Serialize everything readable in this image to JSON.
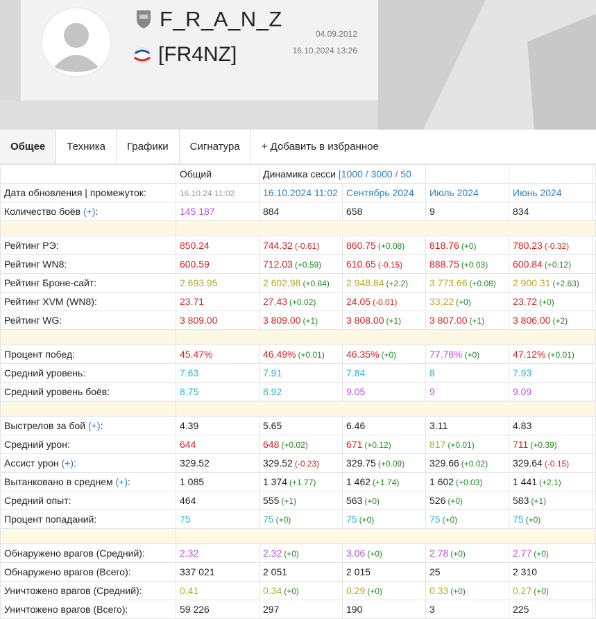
{
  "header": {
    "name": "F_R_A_N_Z",
    "clan": "[FR4NZ]",
    "registered": "04.09.2012",
    "last_battle": "16.10.2024 13:26"
  },
  "tabs": [
    "Общее",
    "Техника",
    "Графики",
    "Сигнатура",
    "+ Добавить в избранное"
  ],
  "table": {
    "head": {
      "total": "Общий",
      "dynamics": "Динамика сесси",
      "dynamics_link": "[1000 / 3000 / 50"
    },
    "colors": {
      "k": "#222222",
      "r": "#e01b1b",
      "g": "#b5a91f",
      "p": "#c04ee0",
      "c": "#2cb5d6",
      "b": "#2a7fc4",
      "s": "#999999",
      "up": "#1f8a1f",
      "down": "#d61f1f"
    },
    "rows": [
      {
        "label": "Дата обновления | промежуток:",
        "cells": [
          [
            "16.10.24 11:02",
            "s"
          ],
          [
            "16.10.2024 11:02",
            "b"
          ],
          [
            "Сентябрь 2024",
            "b"
          ],
          [
            "Июль 2024",
            "b"
          ],
          [
            "Июнь 2024",
            "b"
          ]
        ]
      },
      {
        "label": "Количество боёв",
        "link": "(+)",
        "tail": ":",
        "cells": [
          [
            "145 187",
            "p"
          ],
          [
            "884",
            "k"
          ],
          [
            "658",
            "k"
          ],
          [
            "9",
            "k"
          ],
          [
            "834",
            "k"
          ]
        ]
      },
      {
        "sep": true
      },
      {
        "label": "Рейтинг РЭ:",
        "cells": [
          [
            "850.24",
            "r"
          ],
          [
            "744.32",
            "r",
            "(-0.61)"
          ],
          [
            "860.75",
            "r",
            "(+0.08)"
          ],
          [
            "818.76",
            "r",
            "(+0)"
          ],
          [
            "780.23",
            "r",
            "(-0.32)"
          ]
        ]
      },
      {
        "label": "Рейтинг WN8:",
        "cells": [
          [
            "600.59",
            "r"
          ],
          [
            "712.03",
            "r",
            "(+0.59)"
          ],
          [
            "610.65",
            "r",
            "(-0.15)"
          ],
          [
            "888.75",
            "r",
            "(+0.03)"
          ],
          [
            "600.84",
            "r",
            "(+0.12)"
          ]
        ]
      },
      {
        "label": "Рейтинг Броне-сайт:",
        "cells": [
          [
            "2 693.95",
            "g"
          ],
          [
            "2 602.98",
            "g",
            "(+0.84)"
          ],
          [
            "2 948.84",
            "g",
            "(+2.2)"
          ],
          [
            "3 773.66",
            "g",
            "(+0.08)"
          ],
          [
            "2 900.31",
            "g",
            "(+2.63)"
          ]
        ]
      },
      {
        "label": "Рейтинг XVM (WN8):",
        "cells": [
          [
            "23.71",
            "r"
          ],
          [
            "27.43",
            "r",
            "(+0.02)"
          ],
          [
            "24.05",
            "r",
            "(-0.01)"
          ],
          [
            "33.22",
            "g",
            "(+0)"
          ],
          [
            "23.72",
            "r",
            "(+0)"
          ]
        ]
      },
      {
        "label": "Рейтинг WG:",
        "cells": [
          [
            "3 809.00",
            "r"
          ],
          [
            "3 809.00",
            "r",
            "(+1)"
          ],
          [
            "3 808.00",
            "r",
            "(+1)"
          ],
          [
            "3 807.00",
            "r",
            "(+1)"
          ],
          [
            "3 806.00",
            "r",
            "(+2)"
          ]
        ]
      },
      {
        "sep": true
      },
      {
        "label": "Процент побед:",
        "cells": [
          [
            "45.47%",
            "r"
          ],
          [
            "46.49%",
            "r",
            "(+0.01)"
          ],
          [
            "46.35%",
            "r",
            "(+0)"
          ],
          [
            "77.78%",
            "p",
            "(+0)"
          ],
          [
            "47.12%",
            "r",
            "(+0.01)"
          ]
        ]
      },
      {
        "label": "Средний уровень:",
        "cells": [
          [
            "7.63",
            "c"
          ],
          [
            "7.91",
            "c"
          ],
          [
            "7.84",
            "c"
          ],
          [
            "8",
            "c"
          ],
          [
            "7.93",
            "c"
          ]
        ]
      },
      {
        "label": "Средний уровень боёв:",
        "cells": [
          [
            "8.75",
            "c"
          ],
          [
            "8.92",
            "c"
          ],
          [
            "9.05",
            "p"
          ],
          [
            "9",
            "p"
          ],
          [
            "9.09",
            "p"
          ]
        ]
      },
      {
        "sep": true
      },
      {
        "label": "Выстрелов за бой",
        "link": "(+)",
        "tail": ":",
        "cells": [
          [
            "4.39",
            "k"
          ],
          [
            "5.65",
            "k"
          ],
          [
            "6.46",
            "k"
          ],
          [
            "3.11",
            "k"
          ],
          [
            "4.83",
            "k"
          ]
        ]
      },
      {
        "label": "Средний урон:",
        "cells": [
          [
            "644",
            "r"
          ],
          [
            "648",
            "r",
            "(+0.02)"
          ],
          [
            "671",
            "r",
            "(+0.12)"
          ],
          [
            "817",
            "g",
            "(+0.01)"
          ],
          [
            "711",
            "r",
            "(+0.39)"
          ]
        ]
      },
      {
        "label": "Ассист урон",
        "link": "(+)",
        "tail": ":",
        "cells": [
          [
            "329.52",
            "k"
          ],
          [
            "329.52",
            "k",
            "(-0.23)"
          ],
          [
            "329.75",
            "k",
            "(+0.09)"
          ],
          [
            "329.66",
            "k",
            "(+0.02)"
          ],
          [
            "329.64",
            "k",
            "(-0.15)"
          ]
        ]
      },
      {
        "label": "Вытанковано в среднем",
        "link": "(+)",
        "tail": ":",
        "cells": [
          [
            "1 085",
            "k"
          ],
          [
            "1 374",
            "k",
            "(+1.77)"
          ],
          [
            "1 462",
            "k",
            "(+1.74)"
          ],
          [
            "1 602",
            "k",
            "(+0.03)"
          ],
          [
            "1 441",
            "k",
            "(+2.1)"
          ]
        ]
      },
      {
        "label": "Средний опыт:",
        "cells": [
          [
            "464",
            "k"
          ],
          [
            "555",
            "k",
            "(+1)"
          ],
          [
            "563",
            "k",
            "(+0)"
          ],
          [
            "526",
            "k",
            "(+0)"
          ],
          [
            "583",
            "k",
            "(+1)"
          ]
        ]
      },
      {
        "label": "Процент попаданий:",
        "cells": [
          [
            "75",
            "c"
          ],
          [
            "75",
            "c",
            "(+0)"
          ],
          [
            "75",
            "c",
            "(+0)"
          ],
          [
            "75",
            "c",
            "(+0)"
          ],
          [
            "75",
            "c",
            "(+0)"
          ]
        ]
      },
      {
        "sep": true
      },
      {
        "label": "Обнаружено врагов (Средний):",
        "cells": [
          [
            "2.32",
            "p"
          ],
          [
            "2.32",
            "p",
            "(+0)"
          ],
          [
            "3.06",
            "p",
            "(+0)"
          ],
          [
            "2.78",
            "p",
            "(+0)"
          ],
          [
            "2.77",
            "p",
            "(+0)"
          ]
        ]
      },
      {
        "label": "Обнаружено врагов (Всего):",
        "cells": [
          [
            "337 021",
            "k"
          ],
          [
            "2 051",
            "k"
          ],
          [
            "2 015",
            "k"
          ],
          [
            "25",
            "k"
          ],
          [
            "2 310",
            "k"
          ]
        ]
      },
      {
        "label": "Уничтожено врагов (Средний):",
        "cells": [
          [
            "0.41",
            "g"
          ],
          [
            "0.34",
            "g",
            "(+0)"
          ],
          [
            "0.29",
            "g",
            "(+0)"
          ],
          [
            "0.33",
            "g",
            "(+0)"
          ],
          [
            "0.27",
            "g",
            "(+0)"
          ]
        ]
      },
      {
        "label": "Уничтожено врагов (Всего):",
        "cells": [
          [
            "59 226",
            "k"
          ],
          [
            "297",
            "k"
          ],
          [
            "190",
            "k"
          ],
          [
            "3",
            "k"
          ],
          [
            "225",
            "k"
          ]
        ]
      }
    ]
  }
}
